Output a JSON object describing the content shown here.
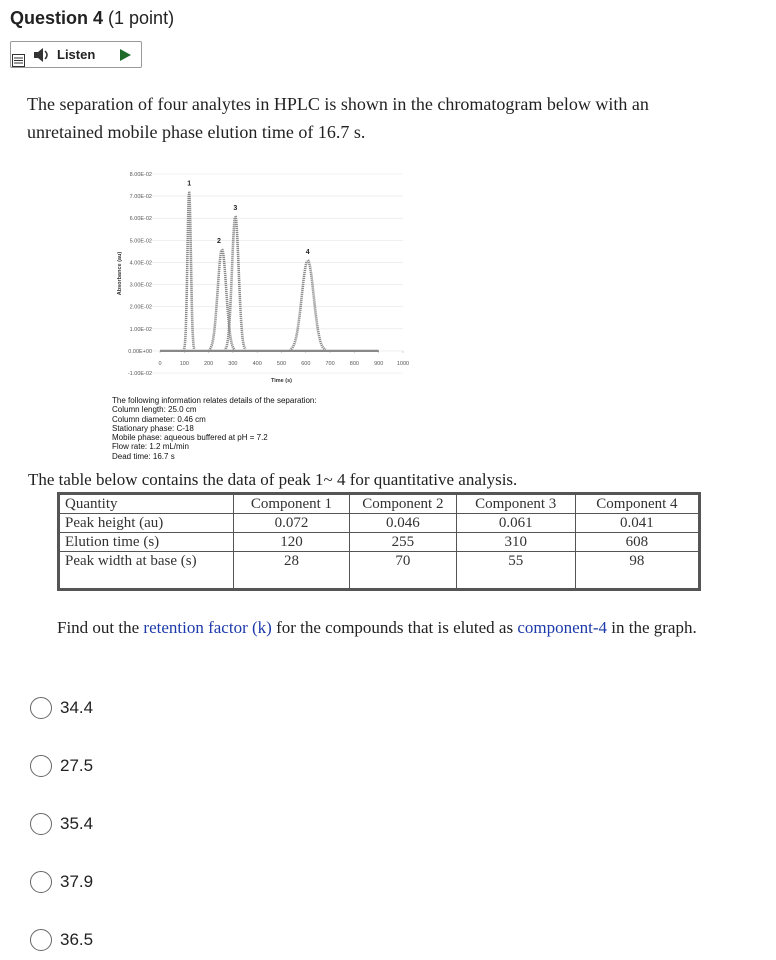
{
  "header": {
    "title": "Question 4",
    "points": "(1 point)"
  },
  "listen": {
    "label": "Listen"
  },
  "question": {
    "text": "The separation of four analytes in HPLC is shown in the chromatogram below with an unretained mobile phase elution time of 16.7 s."
  },
  "chromatogram": {
    "y_label": "Absorbance (au)",
    "x_label": "Time (s)",
    "ylim": [
      -0.01,
      0.08
    ],
    "yticks": [
      {
        "value": 0.08,
        "label": "8.00E-02"
      },
      {
        "value": 0.07,
        "label": "7.00E-02"
      },
      {
        "value": 0.06,
        "label": "6.00E-02"
      },
      {
        "value": 0.05,
        "label": "5.00E-02"
      },
      {
        "value": 0.04,
        "label": "4.00E-02"
      },
      {
        "value": 0.03,
        "label": "3.00E-02"
      },
      {
        "value": 0.02,
        "label": "2.00E-02"
      },
      {
        "value": 0.01,
        "label": "1.00E-02"
      },
      {
        "value": 0,
        "label": "0.00E+00"
      },
      {
        "value": -0.01,
        "label": "-1.00E-02"
      }
    ],
    "xlim": [
      0,
      1000
    ],
    "xticks": [
      0,
      100,
      200,
      300,
      400,
      500,
      600,
      700,
      800,
      900,
      1000
    ],
    "grid": true,
    "peaks": [
      {
        "label": "1",
        "time": 120,
        "height": 0.072,
        "width": 28
      },
      {
        "label": "2",
        "time": 255,
        "height": 0.046,
        "width": 70
      },
      {
        "label": "3",
        "time": 310,
        "height": 0.061,
        "width": 55
      },
      {
        "label": "4",
        "time": 608,
        "height": 0.041,
        "width": 98
      }
    ],
    "info": [
      "The following information relates details of the separation:",
      "Column length: 25.0 cm",
      "Column diameter: 0.46 cm",
      "Stationary phase: C-18",
      "Mobile phase: aqueous buffered at pH = 7.2",
      "Flow rate: 1.2 mL/min",
      "Dead time: 16.7 s"
    ]
  },
  "table": {
    "caption": "The table below contains the data of peak 1~ 4 for quantitative analysis.",
    "header": [
      "Quantity",
      "Component 1",
      "Component 2",
      "Component 3",
      "Component 4"
    ],
    "rows": [
      [
        "Peak height (au)",
        "0.072",
        "0.046",
        "0.061",
        "0.041"
      ],
      [
        "Elution time (s)",
        "120",
        "255",
        "310",
        "608"
      ],
      [
        "Peak width at base (s)",
        "28",
        "70",
        "55",
        "98"
      ]
    ]
  },
  "instruction": {
    "parts": [
      "Find out the ",
      "retention factor (k)",
      " for the compounds that is eluted as ",
      "component-4",
      " in the graph."
    ]
  },
  "options": [
    "34.4",
    "27.5",
    "35.4",
    "37.9",
    "36.5"
  ]
}
